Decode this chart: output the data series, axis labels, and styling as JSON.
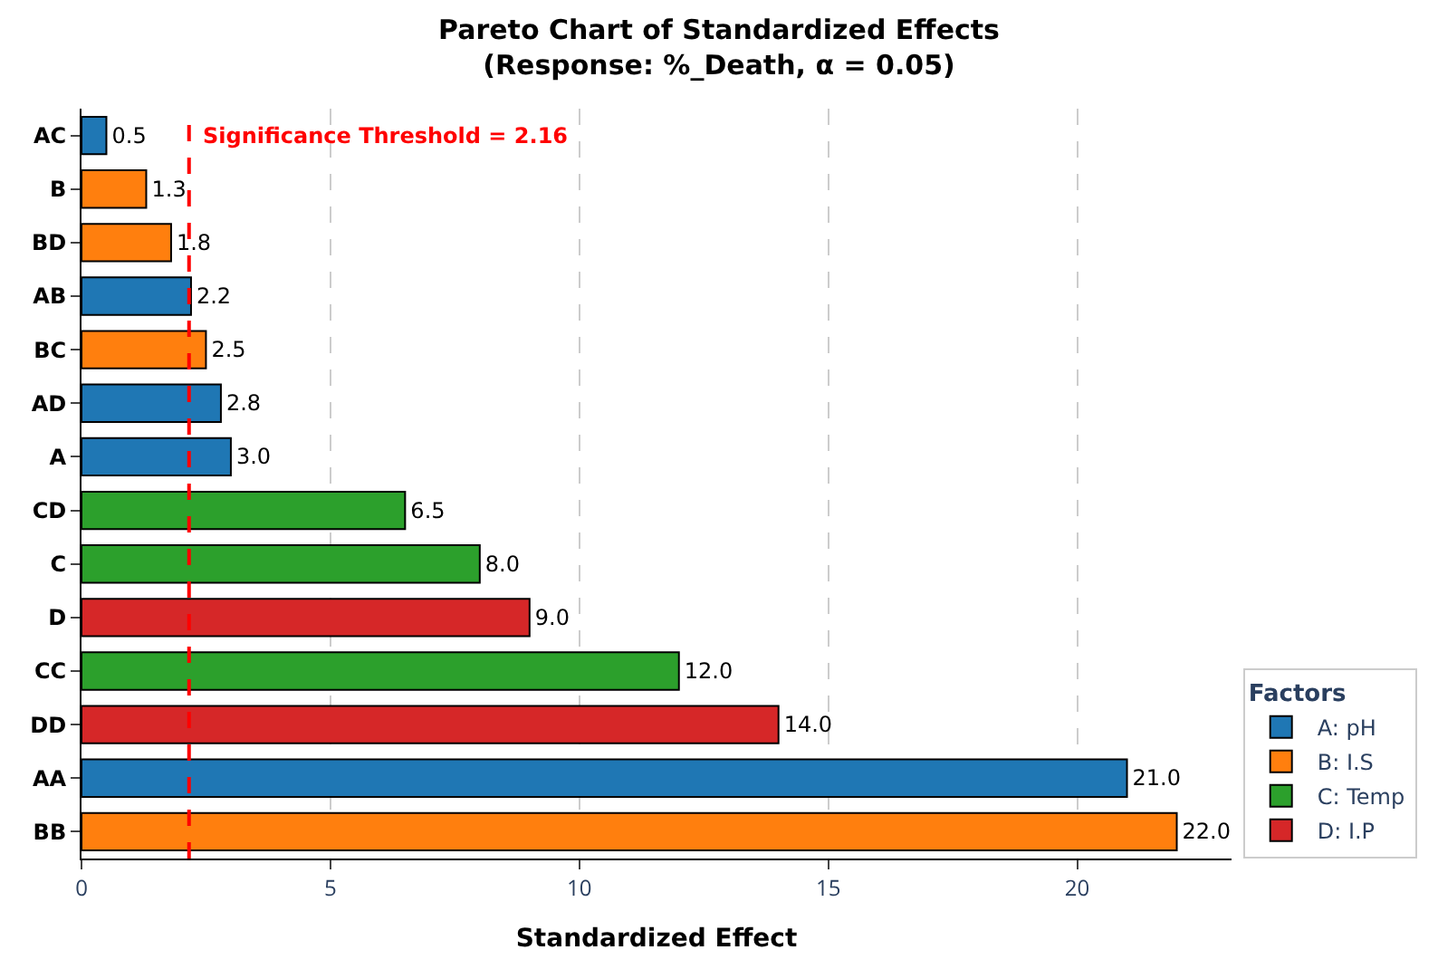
{
  "chart_data": {
    "type": "bar",
    "orientation": "horizontal",
    "title": "Pareto Chart of Standardized Effects\n(Response: %_Death, α = 0.05)",
    "xlabel": "Standardized Effect",
    "legend_title": "Factors",
    "legend": "right",
    "categories": [
      "AC",
      "B",
      "BD",
      "AB",
      "BC",
      "AD",
      "A",
      "CD",
      "C",
      "D",
      "CC",
      "DD",
      "AA",
      "BB"
    ],
    "series": [
      {
        "name": "A: pH",
        "color": "#1f77b4",
        "values": [
          0.5,
          null,
          null,
          2.2,
          null,
          2.8,
          3.0,
          null,
          null,
          null,
          null,
          null,
          21.0,
          null
        ],
        "value_labels": [
          "0.5",
          null,
          null,
          "2.2",
          null,
          "2.8",
          "3.0",
          null,
          null,
          null,
          null,
          null,
          "21.0",
          null
        ]
      },
      {
        "name": "B: I.S",
        "color": "#ff7f0e",
        "values": [
          null,
          1.3,
          1.8,
          null,
          2.5,
          null,
          null,
          null,
          null,
          null,
          null,
          null,
          null,
          22.0
        ],
        "value_labels": [
          null,
          "1.3",
          "1.8",
          null,
          "2.5",
          null,
          null,
          null,
          null,
          null,
          null,
          null,
          null,
          "22.0"
        ]
      },
      {
        "name": "C: Temp",
        "color": "#2ca02c",
        "values": [
          null,
          null,
          null,
          null,
          null,
          null,
          null,
          6.5,
          8.0,
          null,
          12.0,
          null,
          null,
          null
        ],
        "value_labels": [
          null,
          null,
          null,
          null,
          null,
          null,
          null,
          "6.5",
          "8.0",
          null,
          "12.0",
          null,
          null,
          null
        ]
      },
      {
        "name": "D: I.P",
        "color": "#d62728",
        "values": [
          null,
          null,
          null,
          null,
          null,
          null,
          null,
          null,
          null,
          9.0,
          null,
          14.0,
          null,
          null
        ],
        "value_labels": [
          null,
          null,
          null,
          null,
          null,
          null,
          null,
          null,
          null,
          "9.0",
          null,
          "14.0",
          null,
          null
        ]
      }
    ],
    "xlim": [
      0,
      23.1
    ],
    "xticks": [
      0,
      5,
      10,
      15,
      20
    ],
    "grid": "x",
    "ref_lines": [
      {
        "axis": "x",
        "value": 2.16,
        "label": "Significance Threshold = 2.16",
        "color": "#ff0000",
        "line_style": "dashed"
      }
    ]
  }
}
